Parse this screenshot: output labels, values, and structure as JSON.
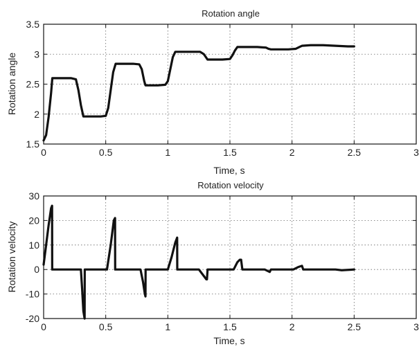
{
  "chart_data": [
    {
      "type": "line",
      "title": "Rotation angle",
      "xlabel": "Time, s",
      "ylabel": "Rotation angle",
      "xlim": [
        0,
        3
      ],
      "ylim": [
        1.5,
        3.5
      ],
      "xticks": [
        "0",
        "0.5",
        "1",
        "1.5",
        "2",
        "2.5",
        "3"
      ],
      "yticks": [
        "1.5",
        "2",
        "2.5",
        "3",
        "3.5"
      ],
      "grid": true,
      "colors": {
        "line": "#111111",
        "grid": "#666666"
      },
      "series": [
        {
          "x": [
            0,
            0.02,
            0.04,
            0.06,
            0.07,
            0.12,
            0.17,
            0.22,
            0.26,
            0.28,
            0.3,
            0.32,
            0.34,
            0.4,
            0.46,
            0.5,
            0.52,
            0.54,
            0.56,
            0.58,
            0.6,
            0.66,
            0.72,
            0.77,
            0.79,
            0.81,
            0.82,
            0.86,
            0.92,
            0.98,
            1.0,
            1.02,
            1.04,
            1.06,
            1.08,
            1.13,
            1.2,
            1.26,
            1.29,
            1.32,
            1.38,
            1.44,
            1.5,
            1.52,
            1.54,
            1.56,
            1.58,
            1.65,
            1.72,
            1.79,
            1.81,
            1.83,
            1.9,
            1.97,
            2.03,
            2.06,
            2.08,
            2.15,
            2.25,
            2.35,
            2.45,
            2.5
          ],
          "y": [
            1.56,
            1.65,
            1.95,
            2.35,
            2.6,
            2.6,
            2.6,
            2.6,
            2.58,
            2.4,
            2.15,
            1.96,
            1.96,
            1.96,
            1.96,
            1.97,
            2.1,
            2.4,
            2.7,
            2.84,
            2.84,
            2.84,
            2.84,
            2.83,
            2.75,
            2.55,
            2.48,
            2.48,
            2.48,
            2.49,
            2.55,
            2.75,
            2.95,
            3.04,
            3.04,
            3.04,
            3.04,
            3.04,
            3.0,
            2.91,
            2.91,
            2.91,
            2.92,
            2.98,
            3.06,
            3.12,
            3.12,
            3.12,
            3.12,
            3.11,
            3.09,
            3.08,
            3.08,
            3.08,
            3.09,
            3.12,
            3.14,
            3.15,
            3.15,
            3.14,
            3.13,
            3.13
          ]
        }
      ]
    },
    {
      "type": "line",
      "title": "Rotation velocity",
      "xlabel": "Time, s",
      "ylabel": "Rotation velocity",
      "xlim": [
        0,
        3
      ],
      "ylim": [
        -20,
        30
      ],
      "xticks": [
        "0",
        "0.5",
        "1",
        "1.5",
        "2",
        "2.5",
        "3"
      ],
      "yticks": [
        "-20",
        "-10",
        "0",
        "10",
        "20",
        "30"
      ],
      "grid": true,
      "colors": {
        "line": "#111111",
        "grid": "#666666"
      },
      "series": [
        {
          "x": [
            0,
            0.02,
            0.04,
            0.06,
            0.068,
            0.069,
            0.3,
            0.31,
            0.32,
            0.33,
            0.331,
            0.51,
            0.54,
            0.565,
            0.575,
            0.576,
            0.78,
            0.8,
            0.815,
            0.82,
            0.821,
            1.0,
            1.03,
            1.06,
            1.075,
            1.076,
            1.25,
            1.28,
            1.31,
            1.315,
            1.32,
            1.53,
            1.56,
            1.58,
            1.59,
            1.6,
            1.78,
            1.82,
            1.83,
            2.01,
            2.05,
            2.08,
            2.09,
            2.35,
            2.4,
            2.5
          ],
          "y": [
            2,
            10,
            18,
            25,
            26,
            0,
            0,
            -8,
            -17,
            -20,
            0,
            0,
            10,
            20,
            21,
            0,
            0,
            -5,
            -10,
            -11,
            0,
            0,
            5,
            11,
            13,
            0,
            0,
            -2,
            -4,
            -4,
            0,
            0,
            3,
            4,
            4,
            0,
            0,
            -1,
            0,
            0,
            1,
            1.5,
            0,
            0,
            -0.3,
            0
          ]
        }
      ]
    }
  ]
}
